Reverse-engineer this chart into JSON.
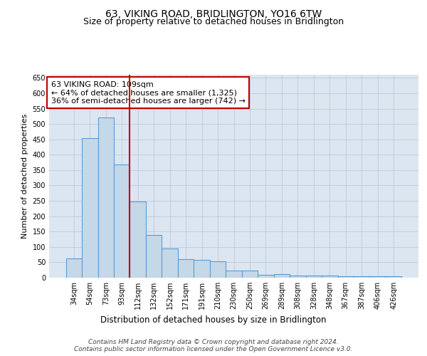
{
  "title": "63, VIKING ROAD, BRIDLINGTON, YO16 6TW",
  "subtitle": "Size of property relative to detached houses in Bridlington",
  "xlabel": "Distribution of detached houses by size in Bridlington",
  "ylabel": "Number of detached properties",
  "categories": [
    "34sqm",
    "54sqm",
    "73sqm",
    "93sqm",
    "112sqm",
    "132sqm",
    "152sqm",
    "171sqm",
    "191sqm",
    "210sqm",
    "230sqm",
    "250sqm",
    "269sqm",
    "289sqm",
    "308sqm",
    "328sqm",
    "348sqm",
    "367sqm",
    "387sqm",
    "406sqm",
    "426sqm"
  ],
  "values": [
    62,
    455,
    520,
    368,
    248,
    140,
    95,
    60,
    58,
    54,
    23,
    23,
    10,
    12,
    7,
    6,
    6,
    5,
    4,
    5,
    4
  ],
  "bar_color": "#c5d8e8",
  "bar_edge_color": "#5b9bd5",
  "bar_edge_width": 0.8,
  "grid_color": "#c0c8d8",
  "background_color": "#dce6f1",
  "vline_x_index": 3.5,
  "vline_color": "#c00000",
  "annotation_text": "63 VIKING ROAD: 109sqm\n← 64% of detached houses are smaller (1,325)\n36% of semi-detached houses are larger (742) →",
  "box_color": "#ffffff",
  "box_edge_color": "#c00000",
  "ylim": [
    0,
    660
  ],
  "yticks": [
    0,
    50,
    100,
    150,
    200,
    250,
    300,
    350,
    400,
    450,
    500,
    550,
    600,
    650
  ],
  "footer": "Contains HM Land Registry data © Crown copyright and database right 2024.\nContains public sector information licensed under the Open Government Licence v3.0.",
  "title_fontsize": 10,
  "subtitle_fontsize": 9,
  "xlabel_fontsize": 8.5,
  "ylabel_fontsize": 8,
  "tick_fontsize": 7,
  "annotation_fontsize": 8,
  "footer_fontsize": 6.5
}
